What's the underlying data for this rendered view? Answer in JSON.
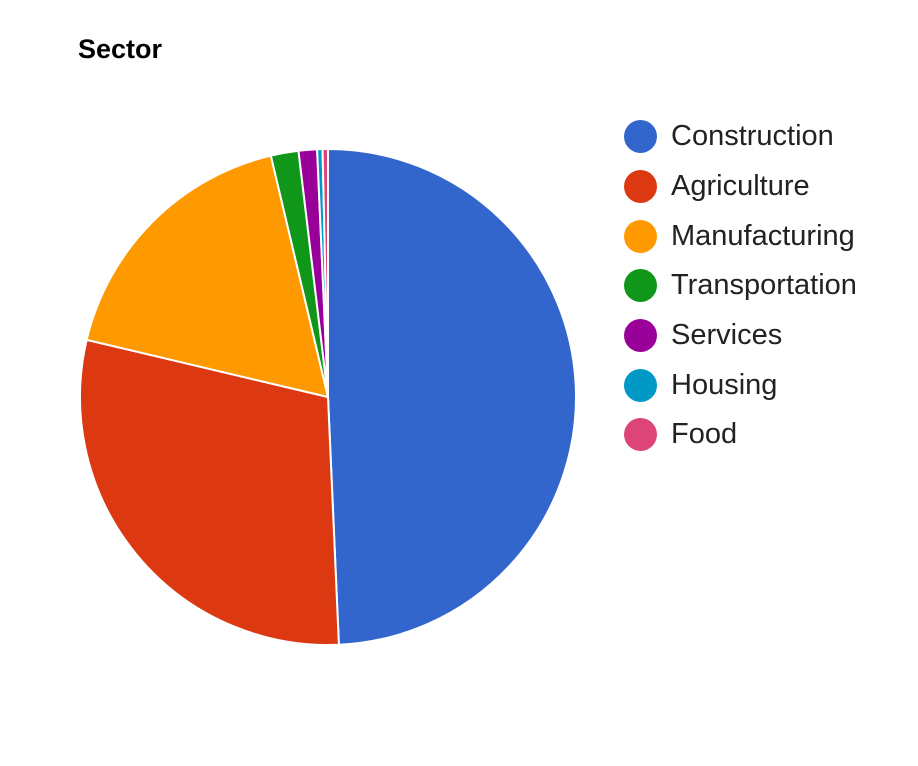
{
  "chart_data": {
    "type": "pie",
    "title": "Sector",
    "legend_position": "right",
    "slices": [
      {
        "label": "Construction",
        "value": 49.3,
        "color": "#3366cc"
      },
      {
        "label": "Agriculture",
        "value": 29.4,
        "color": "#dc3912"
      },
      {
        "label": "Manufacturing",
        "value": 17.6,
        "color": "#ff9900"
      },
      {
        "label": "Transportation",
        "value": 1.8,
        "color": "#109618"
      },
      {
        "label": "Services",
        "value": 1.2,
        "color": "#990099"
      },
      {
        "label": "Housing",
        "value": 0.35,
        "color": "#0099c6"
      },
      {
        "label": "Food",
        "value": 0.35,
        "color": "#dd4477"
      }
    ]
  }
}
